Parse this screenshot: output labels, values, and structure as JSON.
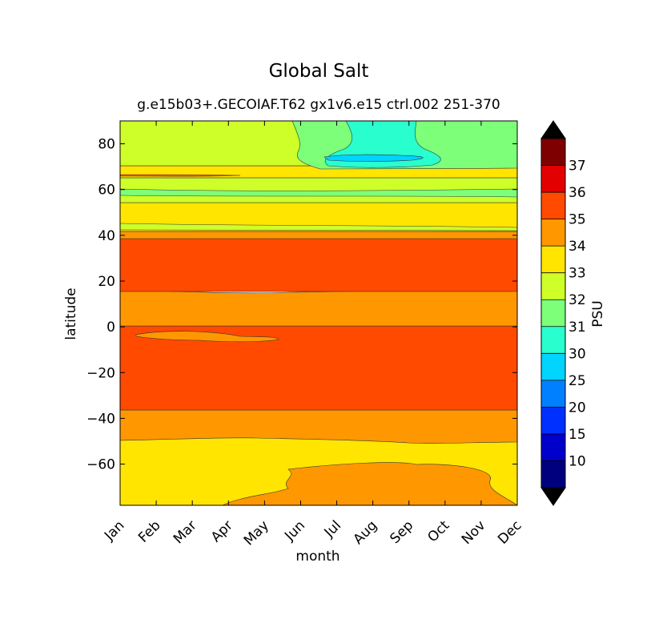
{
  "chart_data": {
    "type": "contour",
    "title": "Global Salt",
    "subtitle": "g.e15b03+.GECOIAF.T62 gx1v6.e15 ctrl.002 251-370",
    "xlabel": "month",
    "ylabel": "latitude",
    "x_ticks": [
      "Jan",
      "Feb",
      "Mar",
      "Apr",
      "May",
      "Jun",
      "Jul",
      "Aug",
      "Sep",
      "Oct",
      "Nov",
      "Dec"
    ],
    "y_ticks": [
      80,
      60,
      40,
      20,
      0,
      -20,
      -40,
      -60
    ],
    "y_tick_labels": [
      "80",
      "60",
      "40",
      "20",
      "0",
      "−20",
      "−40",
      "−60"
    ],
    "ylim": [
      -78,
      90
    ],
    "colorbar": {
      "label": "PSU",
      "levels": [
        "10",
        "15",
        "20",
        "25",
        "30",
        "31",
        "32",
        "33",
        "34",
        "35",
        "36",
        "37"
      ],
      "colors": [
        "#00007f",
        "#0000cd",
        "#0030ff",
        "#0080ff",
        "#00d4ff",
        "#29ffce",
        "#7dff7a",
        "#ceff29",
        "#ffe500",
        "#ff9800",
        "#ff4a00",
        "#e30000",
        "#7f0000"
      ],
      "extend": "both",
      "under_color": "#000000",
      "over_color": "#000000"
    },
    "bands": [
      {
        "lat_min": -78,
        "lat_max": -50,
        "salinity": "33-34",
        "color": "#ffe500"
      },
      {
        "lat_min": -78,
        "lat_max": -61,
        "salinity": "34-35",
        "color": "#ff9800",
        "months": "Apr-Dec"
      },
      {
        "lat_min": -50,
        "lat_max": -37,
        "salinity": "34-35",
        "color": "#ff9800"
      },
      {
        "lat_min": -37,
        "lat_max": 0,
        "salinity": "35-36",
        "color": "#ff4a00"
      },
      {
        "lat_min": -7,
        "lat_max": -2,
        "salinity": "34-35",
        "color": "#ff9800",
        "months": "Jan-May"
      },
      {
        "lat_min": 0,
        "lat_max": 15,
        "salinity": "34-35",
        "color": "#ff9800"
      },
      {
        "lat_min": 15,
        "lat_max": 39,
        "salinity": "35-36",
        "color": "#ff4a00"
      },
      {
        "lat_min": 39,
        "lat_max": 42,
        "salinity": "34-35",
        "color": "#ff9800"
      },
      {
        "lat_min": 42,
        "lat_max": 45,
        "salinity": "33-34",
        "color": "#ffe500"
      },
      {
        "lat_min": 45,
        "lat_max": 54,
        "salinity": "33-34",
        "color": "#ffe500"
      },
      {
        "lat_min": 54,
        "lat_max": 62,
        "salinity": "32-33",
        "color": "#ceff29"
      },
      {
        "lat_min": 62,
        "lat_max": 70,
        "salinity": "33-34",
        "color": "#ffe500"
      },
      {
        "lat_min": 70,
        "lat_max": 90,
        "salinity": "32-33",
        "color": "#ceff29"
      },
      {
        "lat_min": 70,
        "lat_max": 90,
        "salinity": "31-32",
        "color": "#7dff7a",
        "months": "Jun-Dec"
      },
      {
        "lat_min": 72,
        "lat_max": 90,
        "salinity": "30-31",
        "color": "#29ffce",
        "months": "Jun-Oct"
      },
      {
        "lat_min": 74,
        "lat_max": 76,
        "salinity": "25-30",
        "color": "#00d4ff",
        "months": "Jul-Sep"
      }
    ]
  }
}
